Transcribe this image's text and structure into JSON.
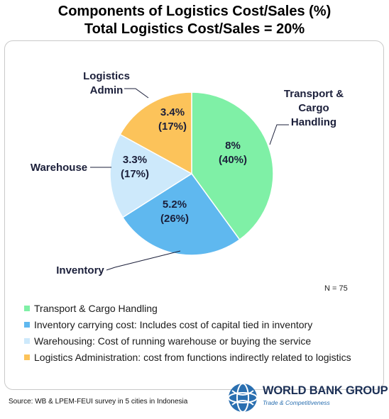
{
  "chart_data": {
    "type": "pie",
    "title": "Components of Logistics Cost/Sales (%)",
    "subtitle": "Total Logistics Cost/Sales = 20%",
    "slices": [
      {
        "callout": "Transport & Cargo Handling",
        "value": 8,
        "value_label": "8%",
        "share_label": "(40%)",
        "share": 40,
        "color": "#7ff0a6"
      },
      {
        "callout": "Inventory",
        "value": 5.2,
        "value_label": "5.2%",
        "share_label": "(26%)",
        "share": 26,
        "color": "#5fb8ef"
      },
      {
        "callout": "Warehouse",
        "value": 3.3,
        "value_label": "3.3%",
        "share_label": "(17%)",
        "share": 17,
        "color": "#cde9fb"
      },
      {
        "callout": "Logistics Admin",
        "value": 3.4,
        "value_label": "3.4%",
        "share_label": "(17%)",
        "share": 17,
        "color": "#fcc35a"
      }
    ],
    "legend": [
      {
        "label": "Transport & Cargo Handling",
        "color": "#7ff0a6"
      },
      {
        "label": "Inventory carrying cost: Includes cost of capital tied in inventory",
        "color": "#5fb8ef"
      },
      {
        "label": "Warehousing: Cost of running warehouse or buying the service",
        "color": "#cde9fb"
      },
      {
        "label": "Logistics Administration: cost from functions indirectly related to logistics",
        "color": "#fcc35a"
      }
    ],
    "legend_position": "bottom-left",
    "annotation": "N = 75"
  },
  "source": "Source: WB & LPEM-FEUI survey in 5 cities in Indonesia",
  "logo": {
    "name": "WORLD BANK GROUP",
    "tagline": "Trade & Competitiveness"
  }
}
